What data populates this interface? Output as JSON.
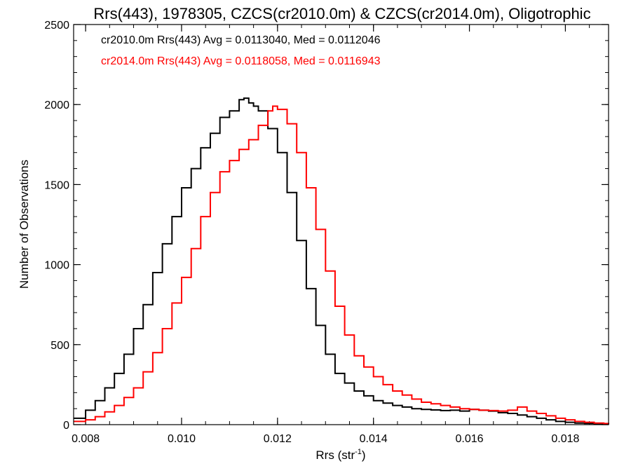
{
  "chart_data": {
    "type": "line",
    "title": "Rrs(443), 1978305, CZCS(cr2010.0m) & CZCS(cr2014.0m), Oligotrophic",
    "xlabel": "Rrs (str",
    "xlabel_sup": "-1",
    "xlabel_tail": ")",
    "ylabel": "Number of Observations",
    "xlim": [
      0.00775,
      0.0189
    ],
    "ylim": [
      0,
      2500
    ],
    "xticks": [
      0.008,
      0.01,
      0.012,
      0.014,
      0.016,
      0.018
    ],
    "xtick_labels": [
      "0.008",
      "0.010",
      "0.012",
      "0.014",
      "0.016",
      "0.018"
    ],
    "yticks": [
      0,
      500,
      1000,
      1500,
      2000,
      2500
    ],
    "ytick_labels": [
      "0",
      "500",
      "1000",
      "1500",
      "2000",
      "2500"
    ],
    "grid": false,
    "legend_placement": "top-left",
    "step": true,
    "series": [
      {
        "name": "cr2010.0m Rrs(443) Avg = 0.0113040, Med = 0.0112046",
        "color": "#000000",
        "x": [
          0.00775,
          0.008,
          0.0082,
          0.0084,
          0.0086,
          0.0088,
          0.009,
          0.0092,
          0.0094,
          0.0096,
          0.0098,
          0.01,
          0.0102,
          0.0104,
          0.0106,
          0.0108,
          0.011,
          0.0112,
          0.0113,
          0.0114,
          0.0115,
          0.0116,
          0.0118,
          0.012,
          0.0122,
          0.0124,
          0.0126,
          0.0128,
          0.013,
          0.0132,
          0.0134,
          0.0136,
          0.0138,
          0.014,
          0.0142,
          0.0144,
          0.0146,
          0.0148,
          0.015,
          0.0152,
          0.0154,
          0.0156,
          0.0158,
          0.016,
          0.0162,
          0.0164,
          0.0166,
          0.0168,
          0.017,
          0.0172,
          0.0174,
          0.0176,
          0.0178,
          0.018,
          0.0182,
          0.0184,
          0.0186,
          0.0188,
          0.0189
        ],
        "y": [
          40,
          90,
          150,
          230,
          320,
          440,
          600,
          750,
          950,
          1130,
          1300,
          1480,
          1600,
          1730,
          1820,
          1920,
          1960,
          2030,
          2040,
          2010,
          1990,
          1960,
          1850,
          1700,
          1450,
          1150,
          850,
          620,
          440,
          320,
          260,
          210,
          180,
          150,
          135,
          120,
          110,
          100,
          95,
          92,
          88,
          90,
          85,
          95,
          90,
          85,
          75,
          70,
          60,
          50,
          40,
          30,
          20,
          15,
          10,
          8,
          5,
          3,
          2
        ]
      },
      {
        "name": "cr2014.0m Rrs(443) Avg = 0.0118058, Med = 0.0116943",
        "color": "#ff0000",
        "x": [
          0.00775,
          0.008,
          0.0082,
          0.0084,
          0.0086,
          0.0088,
          0.009,
          0.0092,
          0.0094,
          0.0096,
          0.0098,
          0.01,
          0.0102,
          0.0104,
          0.0106,
          0.0108,
          0.011,
          0.0112,
          0.0114,
          0.0116,
          0.0118,
          0.0119,
          0.012,
          0.0122,
          0.0124,
          0.0126,
          0.0128,
          0.013,
          0.0132,
          0.0134,
          0.0136,
          0.0138,
          0.014,
          0.0142,
          0.0144,
          0.0146,
          0.0148,
          0.015,
          0.0152,
          0.0154,
          0.0156,
          0.0158,
          0.016,
          0.0162,
          0.0164,
          0.0166,
          0.0168,
          0.017,
          0.0172,
          0.0174,
          0.0176,
          0.0178,
          0.018,
          0.0182,
          0.0184,
          0.0186,
          0.0188,
          0.0189
        ],
        "y": [
          20,
          30,
          50,
          80,
          120,
          170,
          230,
          330,
          450,
          600,
          760,
          920,
          1100,
          1300,
          1450,
          1580,
          1650,
          1720,
          1780,
          1870,
          1960,
          1990,
          1970,
          1880,
          1700,
          1480,
          1220,
          960,
          740,
          560,
          430,
          360,
          300,
          250,
          210,
          185,
          160,
          140,
          130,
          120,
          110,
          100,
          95,
          90,
          88,
          85,
          90,
          110,
          85,
          70,
          55,
          40,
          30,
          20,
          15,
          10,
          7,
          5
        ]
      }
    ]
  }
}
